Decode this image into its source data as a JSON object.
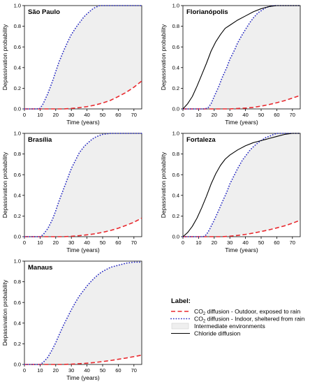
{
  "colors": {
    "co2_outdoor": "#e8292e",
    "co2_indoor": "#2e31c4",
    "intermediate_fill": "#efefef",
    "chloride": "#000000",
    "axis": "#000000"
  },
  "legend": {
    "heading": "Label:",
    "entries": [
      {
        "key": "co2_outdoor",
        "style": "dashed",
        "prefix": "CO",
        "sub": "2",
        "text": " diffusion - Outdoor, exposed to rain"
      },
      {
        "key": "co2_indoor",
        "style": "dotted",
        "prefix": "CO",
        "sub": "2",
        "text": " diffusion - Indoor, sheltered from rain"
      },
      {
        "key": "intermediate_fill",
        "style": "box",
        "prefix": "",
        "sub": "",
        "text": "Intermediate environments"
      },
      {
        "key": "chloride",
        "style": "solid",
        "prefix": "",
        "sub": "",
        "text": "Chloride diffusion"
      }
    ]
  },
  "chart_data": [
    {
      "type": "line",
      "title": "São Paulo",
      "xlabel": "Time (years)",
      "ylabel": "Depassivation probability",
      "xlim": [
        0,
        75
      ],
      "ylim": [
        0,
        1.0
      ],
      "xticks": [
        0,
        10,
        20,
        30,
        40,
        50,
        60,
        70
      ],
      "yticks": [
        "0.0",
        "0.2",
        "0.4",
        "0.6",
        "0.8",
        "1.0"
      ],
      "grid": false,
      "series": [
        {
          "key": "co2_indoor",
          "x": [
            0,
            8,
            10,
            12,
            15,
            18,
            20,
            22,
            25,
            28,
            30,
            33,
            35,
            38,
            40,
            43,
            45,
            48,
            75
          ],
          "y": [
            0,
            0,
            0.005,
            0.05,
            0.15,
            0.27,
            0.36,
            0.45,
            0.56,
            0.66,
            0.72,
            0.79,
            0.83,
            0.89,
            0.92,
            0.96,
            0.98,
            1.0,
            1.0
          ]
        },
        {
          "key": "co2_outdoor",
          "x": [
            0,
            25,
            30,
            35,
            40,
            45,
            50,
            55,
            60,
            65,
            70,
            75
          ],
          "y": [
            0,
            0,
            0.005,
            0.012,
            0.022,
            0.037,
            0.057,
            0.083,
            0.12,
            0.16,
            0.21,
            0.27
          ]
        }
      ]
    },
    {
      "type": "line",
      "title": "Florianópolis",
      "xlabel": "Time (years)",
      "ylabel": "Depassivation probability",
      "xlim": [
        0,
        75
      ],
      "ylim": [
        0,
        1.0
      ],
      "xticks": [
        0,
        10,
        20,
        30,
        40,
        50,
        60,
        70
      ],
      "yticks": [
        "0.0",
        "0.2",
        "0.4",
        "0.6",
        "0.8",
        "1.0"
      ],
      "grid": false,
      "series": [
        {
          "key": "chloride",
          "x": [
            0,
            3,
            6,
            9,
            12,
            15,
            18,
            21,
            24,
            27,
            30,
            35,
            40,
            45,
            50,
            55,
            60,
            65,
            75
          ],
          "y": [
            0,
            0.05,
            0.12,
            0.22,
            0.33,
            0.44,
            0.56,
            0.65,
            0.72,
            0.78,
            0.81,
            0.86,
            0.9,
            0.94,
            0.97,
            0.99,
            1.0,
            1.0,
            1.0
          ]
        },
        {
          "key": "co2_indoor",
          "x": [
            0,
            14,
            16,
            18,
            20,
            23,
            25,
            28,
            30,
            33,
            35,
            38,
            40,
            43,
            45,
            48,
            50,
            53,
            55,
            58,
            75
          ],
          "y": [
            0,
            0,
            0.01,
            0.05,
            0.12,
            0.22,
            0.3,
            0.4,
            0.48,
            0.57,
            0.64,
            0.72,
            0.77,
            0.84,
            0.88,
            0.93,
            0.95,
            0.98,
            0.99,
            1.0,
            1.0
          ]
        },
        {
          "key": "co2_outdoor",
          "x": [
            0,
            30,
            40,
            45,
            50,
            55,
            60,
            65,
            70,
            75
          ],
          "y": [
            0,
            0,
            0.008,
            0.015,
            0.027,
            0.042,
            0.06,
            0.08,
            0.105,
            0.13
          ]
        }
      ]
    },
    {
      "type": "line",
      "title": "Brasília",
      "xlabel": "Time (years)",
      "ylabel": "Depassivation probability",
      "xlim": [
        0,
        75
      ],
      "ylim": [
        0,
        1.0
      ],
      "xticks": [
        0,
        10,
        20,
        30,
        40,
        50,
        60,
        70
      ],
      "yticks": [
        "0.0",
        "0.2",
        "0.4",
        "0.6",
        "0.8",
        "1.0"
      ],
      "grid": false,
      "series": [
        {
          "key": "co2_indoor",
          "x": [
            0,
            10,
            12,
            15,
            18,
            20,
            22,
            25,
            28,
            30,
            33,
            35,
            38,
            40,
            43,
            45,
            48,
            50,
            55,
            60,
            75
          ],
          "y": [
            0,
            0,
            0.02,
            0.08,
            0.17,
            0.25,
            0.34,
            0.46,
            0.58,
            0.66,
            0.75,
            0.81,
            0.87,
            0.9,
            0.94,
            0.96,
            0.98,
            0.99,
            1.0,
            1.0,
            1.0
          ]
        },
        {
          "key": "co2_outdoor",
          "x": [
            0,
            25,
            30,
            35,
            40,
            45,
            50,
            55,
            60,
            65,
            70,
            75
          ],
          "y": [
            0,
            0,
            0.004,
            0.01,
            0.018,
            0.028,
            0.042,
            0.06,
            0.082,
            0.11,
            0.14,
            0.18
          ]
        }
      ]
    },
    {
      "type": "line",
      "title": "Fortaleza",
      "xlabel": "Time (years)",
      "ylabel": "Depassivation probability",
      "xlim": [
        0,
        75
      ],
      "ylim": [
        0,
        1.0
      ],
      "xticks": [
        0,
        10,
        20,
        30,
        40,
        50,
        60,
        70
      ],
      "yticks": [
        "0.0",
        "0.2",
        "0.4",
        "0.6",
        "0.8",
        "1.0"
      ],
      "grid": false,
      "series": [
        {
          "key": "chloride",
          "x": [
            0,
            3,
            6,
            9,
            12,
            15,
            18,
            21,
            24,
            27,
            30,
            35,
            40,
            45,
            50,
            55,
            60,
            65,
            70,
            75
          ],
          "y": [
            0,
            0.04,
            0.1,
            0.18,
            0.28,
            0.39,
            0.51,
            0.61,
            0.69,
            0.75,
            0.79,
            0.84,
            0.88,
            0.91,
            0.93,
            0.95,
            0.97,
            0.99,
            1.0,
            1.0
          ]
        },
        {
          "key": "co2_indoor",
          "x": [
            0,
            13,
            15,
            17,
            20,
            23,
            25,
            28,
            30,
            33,
            35,
            38,
            40,
            43,
            45,
            48,
            50,
            53,
            55,
            58,
            60,
            65,
            75
          ],
          "y": [
            0,
            0,
            0.02,
            0.07,
            0.16,
            0.26,
            0.33,
            0.43,
            0.51,
            0.6,
            0.66,
            0.74,
            0.78,
            0.84,
            0.87,
            0.91,
            0.93,
            0.96,
            0.97,
            0.99,
            1.0,
            1.0,
            1.0
          ]
        },
        {
          "key": "co2_outdoor",
          "x": [
            0,
            25,
            30,
            35,
            40,
            45,
            50,
            55,
            60,
            65,
            70,
            75
          ],
          "y": [
            0,
            0,
            0.005,
            0.012,
            0.022,
            0.035,
            0.05,
            0.066,
            0.085,
            0.105,
            0.13,
            0.16
          ]
        }
      ]
    },
    {
      "type": "line",
      "title": "Manaus",
      "xlabel": "Time (years)",
      "ylabel": "Depassivation probability",
      "xlim": [
        0,
        75
      ],
      "ylim": [
        0,
        1.0
      ],
      "xticks": [
        0,
        10,
        20,
        30,
        40,
        50,
        60,
        70
      ],
      "yticks": [
        "0.0",
        "0.2",
        "0.4",
        "0.6",
        "0.8",
        "1.0"
      ],
      "grid": false,
      "series": [
        {
          "key": "co2_indoor",
          "x": [
            0,
            10,
            12,
            15,
            18,
            20,
            22,
            25,
            28,
            30,
            33,
            35,
            38,
            40,
            43,
            45,
            48,
            50,
            55,
            60,
            65,
            70,
            75
          ],
          "y": [
            0,
            0,
            0.02,
            0.07,
            0.15,
            0.21,
            0.28,
            0.38,
            0.47,
            0.53,
            0.61,
            0.66,
            0.72,
            0.76,
            0.81,
            0.84,
            0.88,
            0.9,
            0.94,
            0.96,
            0.98,
            0.99,
            0.99
          ]
        },
        {
          "key": "co2_outdoor",
          "x": [
            0,
            25,
            30,
            35,
            40,
            45,
            50,
            55,
            60,
            65,
            70,
            75
          ],
          "y": [
            0,
            0,
            0.003,
            0.007,
            0.012,
            0.019,
            0.028,
            0.038,
            0.05,
            0.062,
            0.076,
            0.09
          ]
        }
      ]
    }
  ]
}
